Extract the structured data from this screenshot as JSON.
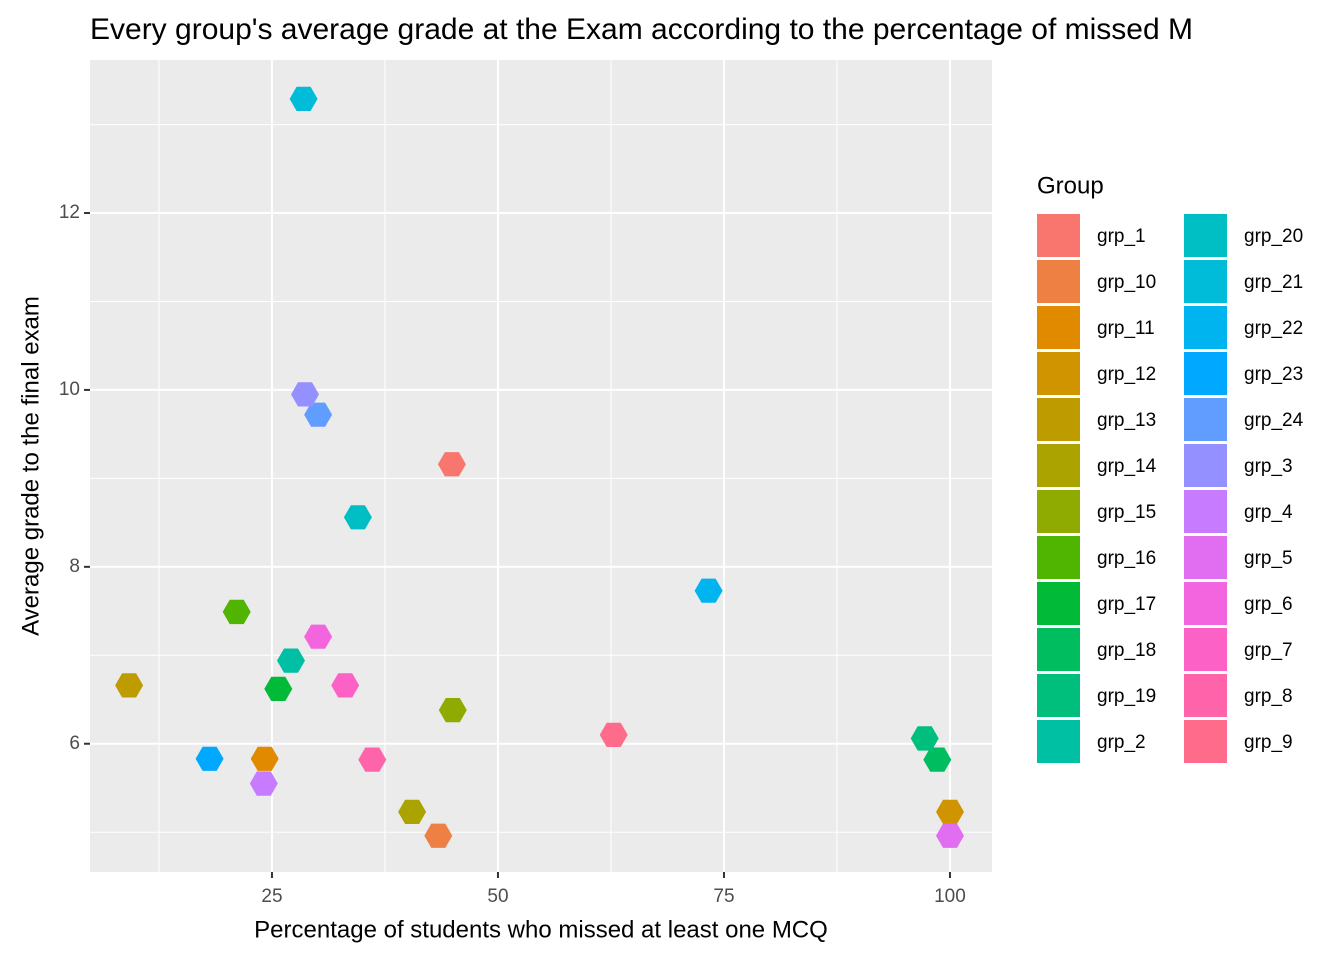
{
  "chart_data": {
    "type": "scatter",
    "title": "Every group's average grade at the Exam according to the percentage of missed M",
    "x_label": "Percentage of students who missed at least one MCQ",
    "y_label": "Average grade to the final exam",
    "legend_title": "Group",
    "xlim": [
      4.87,
      104.65
    ],
    "ylim": [
      4.55,
      13.73
    ],
    "xticks": [
      25,
      50,
      75,
      100
    ],
    "yticks": [
      6,
      8,
      10,
      12
    ],
    "grid": true,
    "legend": "right",
    "series": [
      {
        "name": "grp_1",
        "color": "#F8766D",
        "x": [
          44.9
        ],
        "values": [
          9.16
        ]
      },
      {
        "name": "grp_10",
        "color": "#EE8044",
        "x": [
          43.4
        ],
        "values": [
          4.96
        ]
      },
      {
        "name": "grp_11",
        "color": "#E18A00",
        "x": [
          24.2
        ],
        "values": [
          5.83
        ]
      },
      {
        "name": "grp_12",
        "color": "#D09400",
        "x": [
          100
        ],
        "values": [
          5.23
        ]
      },
      {
        "name": "grp_13",
        "color": "#BE9C00",
        "x": [
          9.2
        ],
        "values": [
          6.66
        ]
      },
      {
        "name": "grp_14",
        "color": "#AAA300",
        "x": [
          40.5
        ],
        "values": [
          5.23
        ]
      },
      {
        "name": "grp_15",
        "color": "#8FAA00",
        "x": [
          45.0
        ],
        "values": [
          6.38
        ]
      },
      {
        "name": "grp_16",
        "color": "#4FB500",
        "x": [
          21.1
        ],
        "values": [
          7.49
        ]
      },
      {
        "name": "grp_17",
        "color": "#00BA38",
        "x": [
          25.7
        ],
        "values": [
          6.62
        ]
      },
      {
        "name": "grp_18",
        "color": "#00BD5F",
        "x": [
          98.6
        ],
        "values": [
          5.82
        ]
      },
      {
        "name": "grp_19",
        "color": "#00BF7D",
        "x": [
          97.2
        ],
        "values": [
          6.06
        ]
      },
      {
        "name": "grp_2",
        "color": "#00C0A3",
        "x": [
          27.1
        ],
        "values": [
          6.94
        ]
      },
      {
        "name": "grp_20",
        "color": "#00BFC4",
        "x": [
          34.5
        ],
        "values": [
          8.56
        ]
      },
      {
        "name": "grp_21",
        "color": "#00BCD8",
        "x": [
          28.5
        ],
        "values": [
          13.29
        ]
      },
      {
        "name": "grp_22",
        "color": "#00B4EF",
        "x": [
          73.3
        ],
        "values": [
          7.73
        ]
      },
      {
        "name": "grp_23",
        "color": "#00A9FF",
        "x": [
          18.1
        ],
        "values": [
          5.83
        ]
      },
      {
        "name": "grp_24",
        "color": "#619CFF",
        "x": [
          30.1
        ],
        "values": [
          9.72
        ]
      },
      {
        "name": "grp_3",
        "color": "#9590FF",
        "x": [
          28.65
        ],
        "values": [
          9.95
        ]
      },
      {
        "name": "grp_4",
        "color": "#C77CFF",
        "x": [
          24.1
        ],
        "values": [
          5.55
        ]
      },
      {
        "name": "grp_5",
        "color": "#E16EF1",
        "x": [
          100
        ],
        "values": [
          4.96
        ]
      },
      {
        "name": "grp_6",
        "color": "#F265DE",
        "x": [
          30.1
        ],
        "values": [
          7.21
        ]
      },
      {
        "name": "grp_7",
        "color": "#FC61C5",
        "x": [
          33.1
        ],
        "values": [
          6.66
        ]
      },
      {
        "name": "grp_8",
        "color": "#FF63A9",
        "x": [
          36.1
        ],
        "values": [
          5.82
        ]
      },
      {
        "name": "grp_9",
        "color": "#FF6C8B",
        "x": [
          62.8
        ],
        "values": [
          6.1
        ]
      }
    ]
  }
}
